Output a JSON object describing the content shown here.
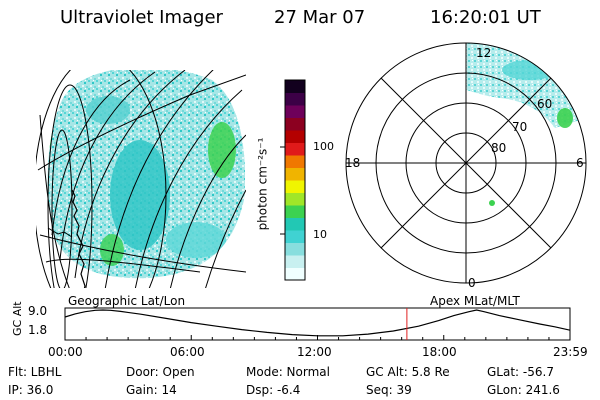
{
  "header": {
    "instrument": "Ultraviolet Imager",
    "date": "27 Mar 07",
    "time": "16:20:01 UT"
  },
  "left_panel": {
    "label": "Geographic Lat/Lon"
  },
  "right_panel": {
    "label": "Apex MLat/MLT",
    "mlt_labels": {
      "top": "12",
      "left": "18",
      "right": "6",
      "bottom": "0"
    },
    "lat_labels": [
      "60",
      "70",
      "80"
    ]
  },
  "colorbar": {
    "label": "photon cm⁻²s⁻¹",
    "ticks": [
      "100",
      "10"
    ],
    "colors": [
      "#f0ffff",
      "#c8f0f0",
      "#88dede",
      "#40d2d2",
      "#22c8b4",
      "#3cd250",
      "#a0e628",
      "#f0f500",
      "#f0b400",
      "#f07800",
      "#e01a1a",
      "#b40000",
      "#8c0020",
      "#6e005a",
      "#3c0046",
      "#12001e"
    ]
  },
  "altitude_plot": {
    "ylabel": "GC Alt",
    "yticks": [
      "9.0",
      "1.8"
    ],
    "xticks": [
      "00:00",
      "06:00",
      "12:00",
      "18:00",
      "23:59"
    ],
    "current_time_fraction": 0.677,
    "orbit": [
      [
        0.0,
        0.75
      ],
      [
        0.02,
        0.86
      ],
      [
        0.04,
        0.94
      ],
      [
        0.06,
        0.99
      ],
      [
        0.075,
        1.0
      ],
      [
        0.09,
        0.99
      ],
      [
        0.11,
        0.95
      ],
      [
        0.15,
        0.85
      ],
      [
        0.2,
        0.7
      ],
      [
        0.25,
        0.55
      ],
      [
        0.3,
        0.42
      ],
      [
        0.35,
        0.3
      ],
      [
        0.4,
        0.2
      ],
      [
        0.45,
        0.12
      ],
      [
        0.5,
        0.08
      ],
      [
        0.55,
        0.08
      ],
      [
        0.6,
        0.14
      ],
      [
        0.65,
        0.25
      ],
      [
        0.7,
        0.42
      ],
      [
        0.74,
        0.62
      ],
      [
        0.77,
        0.8
      ],
      [
        0.8,
        0.94
      ],
      [
        0.815,
        1.0
      ],
      [
        0.83,
        0.94
      ],
      [
        0.86,
        0.8
      ],
      [
        0.9,
        0.65
      ],
      [
        0.94,
        0.5
      ],
      [
        0.97,
        0.4
      ],
      [
        1.0,
        0.28
      ]
    ]
  },
  "status": {
    "filter": "Flt: LBHL",
    "ip": "IP: 36.0",
    "door": "Door: Open",
    "gain": "Gain: 14",
    "mode": "Mode: Normal",
    "dsp": "Dsp:   -6.4",
    "gcalt": "GC Alt: 5.8 Re",
    "seq": "Seq: 39",
    "glat": "GLat: -56.7",
    "glon": "GLon: 241.6"
  }
}
